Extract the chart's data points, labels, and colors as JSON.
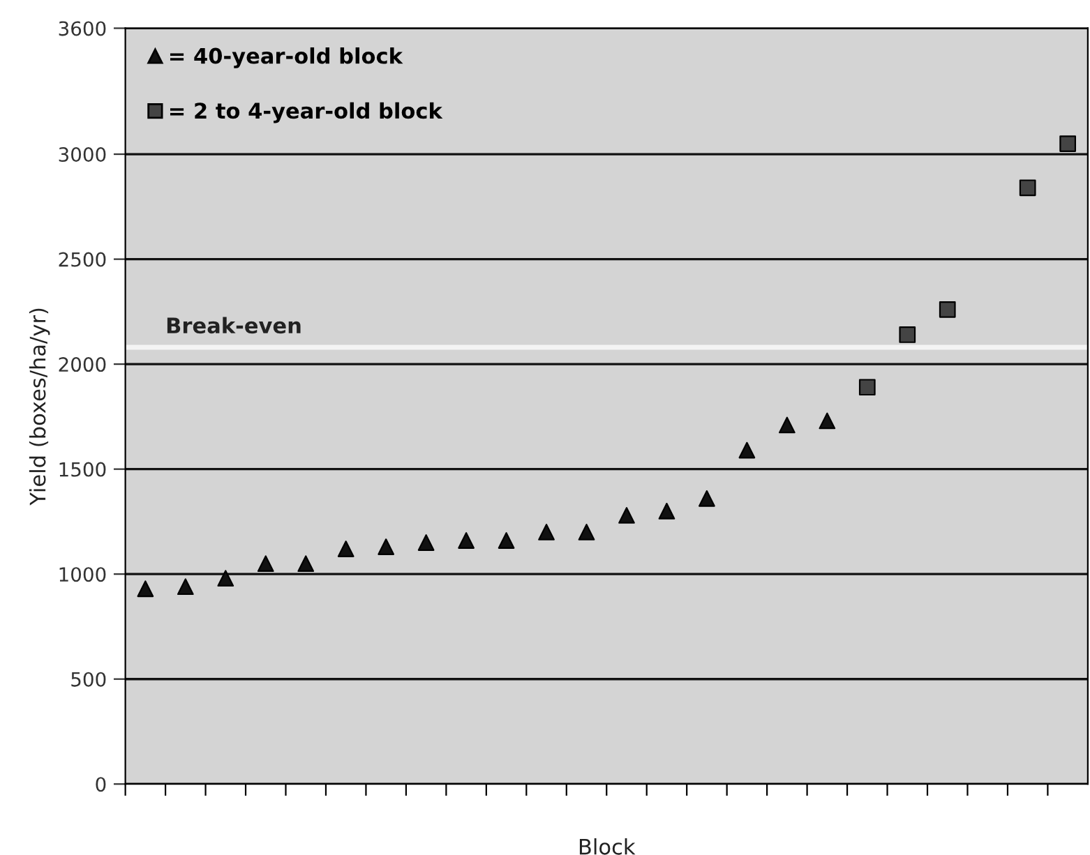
{
  "chart_data": {
    "type": "scatter",
    "xlabel": "Block",
    "ylabel": "Yield (boxes/ha/yr)",
    "categories": [
      null,
      null,
      null,
      null,
      null,
      null,
      null,
      null,
      null,
      null,
      null,
      null,
      null,
      null,
      null,
      null,
      null,
      null,
      null,
      null,
      null,
      null,
      null,
      null
    ],
    "series": [
      {
        "name": "= 40-year-old block",
        "color": "#111111",
        "marker": "triangle",
        "values": [
          930,
          940,
          980,
          1050,
          1050,
          1120,
          1130,
          1150,
          1160,
          1160,
          1200,
          1200,
          1280,
          1300,
          1360,
          1590,
          1710,
          1730,
          null,
          null,
          null,
          null,
          null,
          null
        ]
      },
      {
        "name": "= 2 to 4-year-old block",
        "color": "#444444",
        "marker": "square",
        "values": [
          null,
          null,
          null,
          null,
          null,
          null,
          null,
          null,
          null,
          null,
          null,
          null,
          null,
          null,
          null,
          null,
          null,
          null,
          1890,
          2140,
          2260,
          null,
          2840,
          3050
        ]
      }
    ],
    "ylim": [
      0,
      3600
    ],
    "yticks": [
      0,
      500,
      1000,
      1500,
      2000,
      2500,
      3000,
      3600
    ],
    "grid": "y",
    "legend": "top left",
    "tick_labels": "y",
    "ref_lines": [
      {
        "axis": "y",
        "value": 2080,
        "label": "Break-even",
        "color": "#f4f4f4"
      }
    ]
  }
}
